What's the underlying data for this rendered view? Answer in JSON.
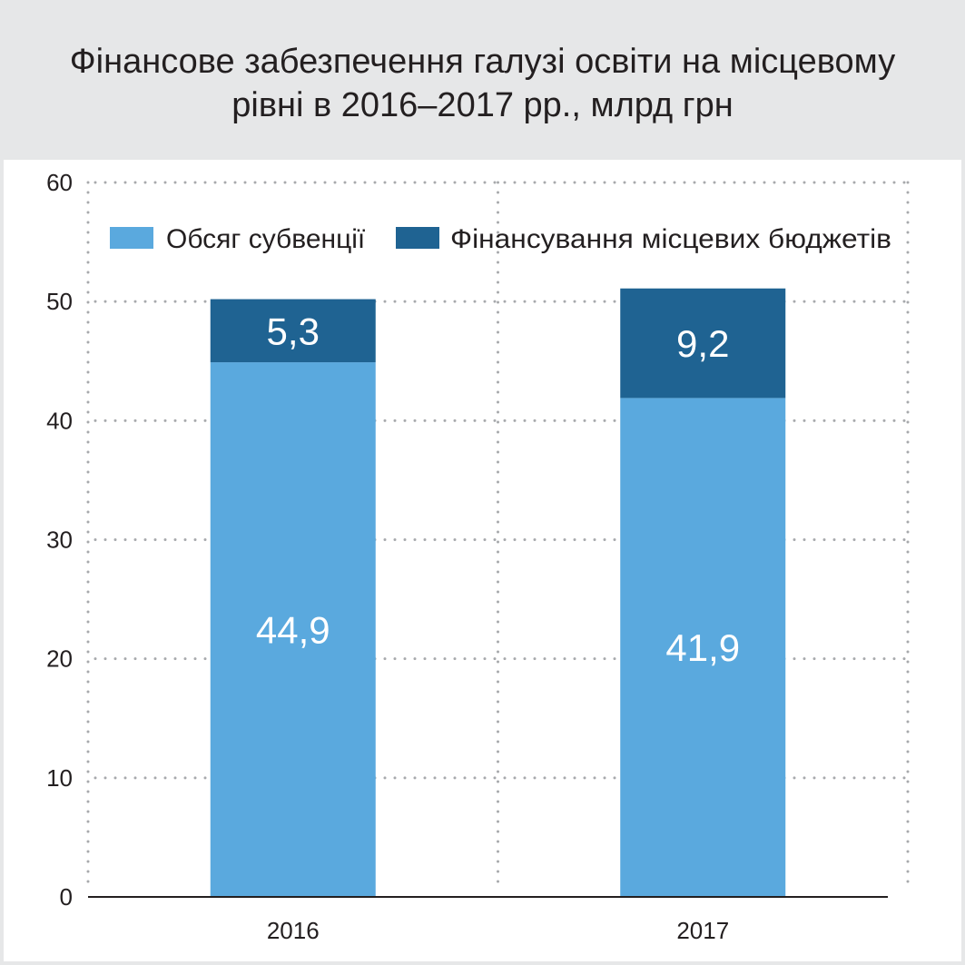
{
  "title_lines": [
    "Фінансове забезпечення галузі освіти на місцевому",
    "рівні в 2016–2017 рр., млрд грн"
  ],
  "chart_data": {
    "type": "bar",
    "stacked": true,
    "title": "Фінансове забезпечення галузі освіти на місцевому рівні в 2016–2017 рр., млрд грн",
    "categories": [
      "2016",
      "2017"
    ],
    "series": [
      {
        "name": "Обсяг субвенції",
        "values": [
          44.9,
          41.9
        ],
        "labels": [
          "44,9",
          "41,9"
        ],
        "color": "#5aa9de"
      },
      {
        "name": "Фінансування місцевих бюджетів",
        "values": [
          5.3,
          9.2
        ],
        "labels": [
          "5,3",
          "9,2"
        ],
        "color": "#1f6392"
      }
    ],
    "ylim": [
      0,
      60
    ],
    "yticks": [
      "0",
      "10",
      "20",
      "30",
      "40",
      "50",
      "60"
    ],
    "grid": true,
    "legend_position": "top"
  }
}
